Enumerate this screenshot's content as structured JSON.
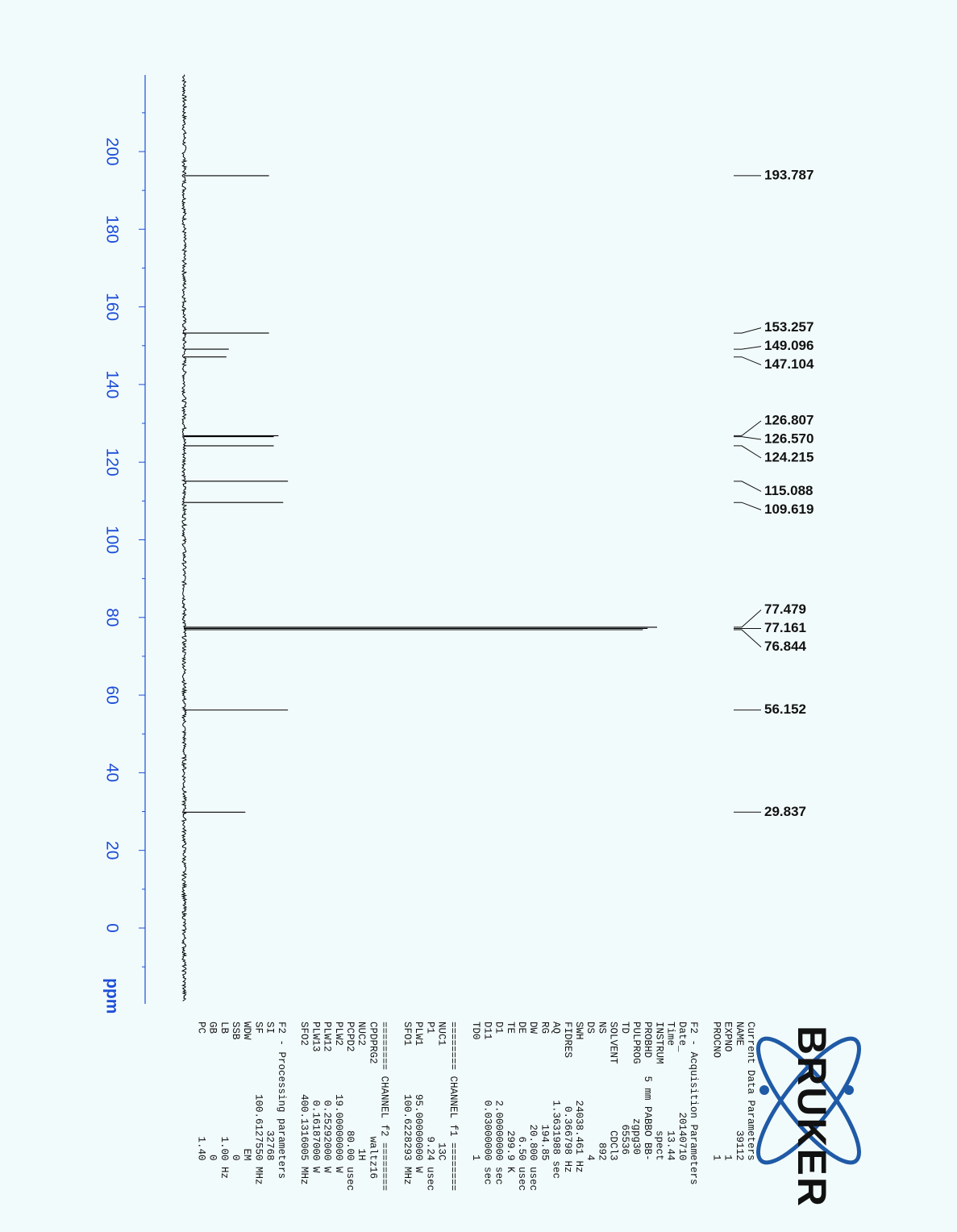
{
  "chart_data": {
    "type": "line",
    "title": "",
    "axis_unit": "ppm",
    "xlim": [
      -18,
      220
    ],
    "ticks": [
      200,
      180,
      160,
      140,
      120,
      100,
      80,
      60,
      40,
      20,
      0
    ],
    "grid": false,
    "orientation": "rotated-90",
    "series": [
      {
        "x": [
          193.787,
          153.257,
          149.096,
          147.104,
          126.807,
          126.57,
          124.215,
          115.088,
          109.619,
          77.479,
          77.161,
          76.844,
          56.152,
          29.837
        ],
        "y": [
          0.18,
          0.18,
          0.095,
          0.09,
          0.2,
          0.19,
          0.19,
          0.22,
          0.21,
          1.0,
          0.98,
          0.97,
          0.22,
          0.13
        ]
      }
    ],
    "peak_labels": [
      "193.787",
      "153.257",
      "149.096",
      "147.104",
      "126.807",
      "126.570",
      "124.215",
      "115.088",
      "109.619",
      "77.479",
      "77.161",
      "76.844",
      "56.152",
      "29.837"
    ]
  },
  "logo_text": "BRUKER",
  "parameters": [
    "Current Data Parameters",
    "NAME              39112",
    "EXPNO                 1",
    "PROCNO                1",
    "",
    "F2 - Acquisition Parameters",
    "Date_          20140710",
    "Time              13.44",
    "INSTRUM           spect",
    "PROBHD   5 mm PABBO BB-",
    "PULPROG         zgpg30",
    "TD               65536",
    "SOLVENT           CDCl3",
    "NS                  892",
    "DS                    4",
    "SWH          24038.461 Hz",
    "FIDRES        0.366798 Hz",
    "AQ           1.3631988 sec",
    "RG               194.85",
    "DW               20.800 usec",
    "DE                 6.50 usec",
    "TE                299.9 K",
    "D1           2.00000000 sec",
    "D11          0.03000000 sec",
    "TD0                   1",
    "",
    "======== CHANNEL f1 ========",
    "NUC1                13C",
    "P1                 9.24 usec",
    "PLW1        95.00000000 W",
    "SFO1        100.6228293 MHz",
    "",
    "======== CHANNEL f2 ========",
    "CPDPRG2            waltz16",
    "NUC2                 1H",
    "PCPD2             80.00 usec",
    "PLW2        19.00000000 W",
    "PLW12        0.25292000 W",
    "PLW13        0.16187000 W",
    "SFO2        400.1316005 MHz",
    "",
    "F2 - Processing parameters",
    "SI                32768",
    "SF          100.6127550 MHz",
    "WDW                  EM",
    "SSB                   0",
    "LB                 1.00 Hz",
    "GB                    0",
    "PC                 1.40"
  ],
  "colors": {
    "axis": "#1c4ed8",
    "background": "#f2fbfb",
    "spectrum": "#000000",
    "logo_blue": "#1f5aa6"
  },
  "icons": [
    "bruker-atom-logo"
  ]
}
